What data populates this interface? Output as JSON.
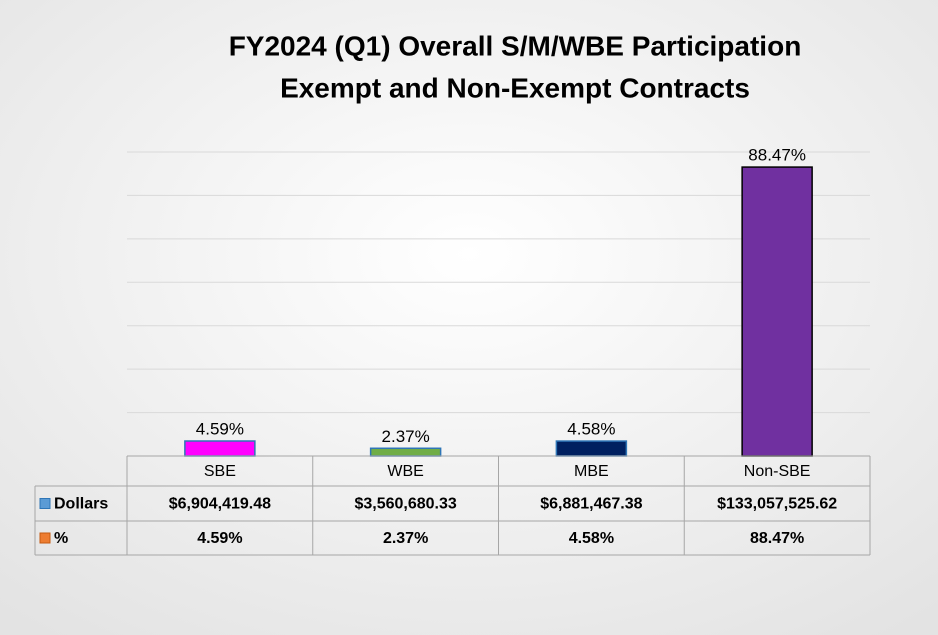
{
  "chart_data": {
    "type": "bar",
    "title": [
      "FY2024 (Q1) Overall S/M/WBE Participation",
      "Exempt and Non-Exempt Contracts"
    ],
    "categories": [
      "SBE",
      "WBE",
      "MBE",
      "Non-SBE"
    ],
    "series": [
      {
        "name": "Dollars",
        "color": "#5b9bd5",
        "colors": [
          "#ff00ff",
          "#70ad47",
          "#002060",
          "#7030a0"
        ],
        "values": [
          6904419.48,
          3560680.33,
          6881467.38,
          133057525.62
        ],
        "value_labels": [
          "$6,904,419.48",
          "$3,560,680.33",
          "$6,881,467.38",
          "$133,057,525.62"
        ]
      },
      {
        "name": "%",
        "color": "#ed7d31",
        "values": [
          4.59,
          2.37,
          4.58,
          88.47
        ],
        "value_labels": [
          "4.59%",
          "2.37%",
          "4.58%",
          "88.47%"
        ]
      }
    ],
    "ylim": [
      0,
      140000000
    ],
    "yticks": [
      0,
      20000000,
      40000000,
      60000000,
      80000000,
      100000000,
      120000000,
      140000000
    ],
    "grid": true,
    "legend": "table"
  }
}
